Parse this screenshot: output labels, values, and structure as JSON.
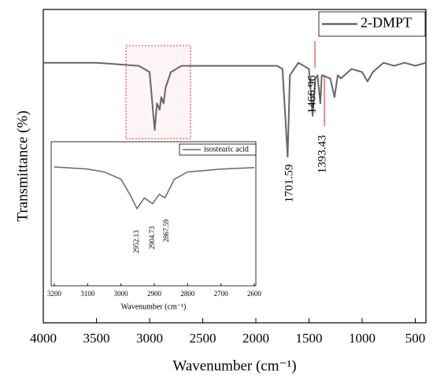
{
  "chart_data": [
    {
      "type": "line",
      "xlabel": "Wavenumber (cm⁻¹)",
      "ylabel": "Transmittance (%)",
      "xlim": [
        4000,
        400
      ],
      "ylim": [
        0,
        100
      ],
      "xticks": [
        4000,
        3500,
        3000,
        2500,
        2000,
        1500,
        1000,
        500
      ],
      "legend": "upper right",
      "series": [
        {
          "name": "2-DMPT",
          "color": "#676767",
          "x": [
            4000,
            3500,
            3100,
            3000,
            2952,
            2930,
            2905,
            2890,
            2868,
            2850,
            2800,
            2700,
            2500,
            2000,
            1800,
            1750,
            1701,
            1680,
            1600,
            1500,
            1466,
            1440,
            1420,
            1393,
            1380,
            1300,
            1260,
            1230,
            1200,
            1100,
            1000,
            950,
            900,
            800,
            700,
            600,
            500,
            400
          ],
          "values": [
            83,
            83,
            82,
            80,
            61.5,
            70,
            68,
            72,
            70,
            75,
            80,
            82,
            82,
            82,
            82,
            81,
            53,
            79,
            83,
            81,
            66,
            78,
            79,
            70,
            79,
            78,
            72,
            79,
            78,
            81,
            80,
            77,
            80,
            83,
            82,
            83,
            82,
            83
          ]
        }
      ],
      "annotations": [
        "1701.59",
        "1466.96",
        "1393.43"
      ],
      "annotation_colors": [
        "#6b4a12",
        "#e0202a",
        "#e0202a"
      ]
    },
    {
      "type": "line",
      "xlabel": "Wavenumber (cm⁻¹)",
      "xlim": [
        3200,
        2600
      ],
      "ylim": [
        0,
        100
      ],
      "xticks": [
        3200,
        3100,
        3000,
        2900,
        2800,
        2700,
        2600
      ],
      "legend": "upper right",
      "series": [
        {
          "name": "isostearic acid",
          "color": "#676767",
          "x": [
            3200,
            3100,
            3050,
            3000,
            2970,
            2952,
            2930,
            2905,
            2885,
            2868,
            2840,
            2800,
            2700,
            2600
          ],
          "values": [
            82.5,
            81,
            79,
            74,
            62,
            53.5,
            61,
            57,
            63.5,
            61,
            74,
            79,
            81,
            82
          ]
        }
      ],
      "annotations": [
        "2952.13",
        "2904.73",
        "2867.59"
      ],
      "annotation_colors": [
        "#7a4a1a",
        "#7a4a1a",
        "#7a4a1a"
      ]
    }
  ]
}
